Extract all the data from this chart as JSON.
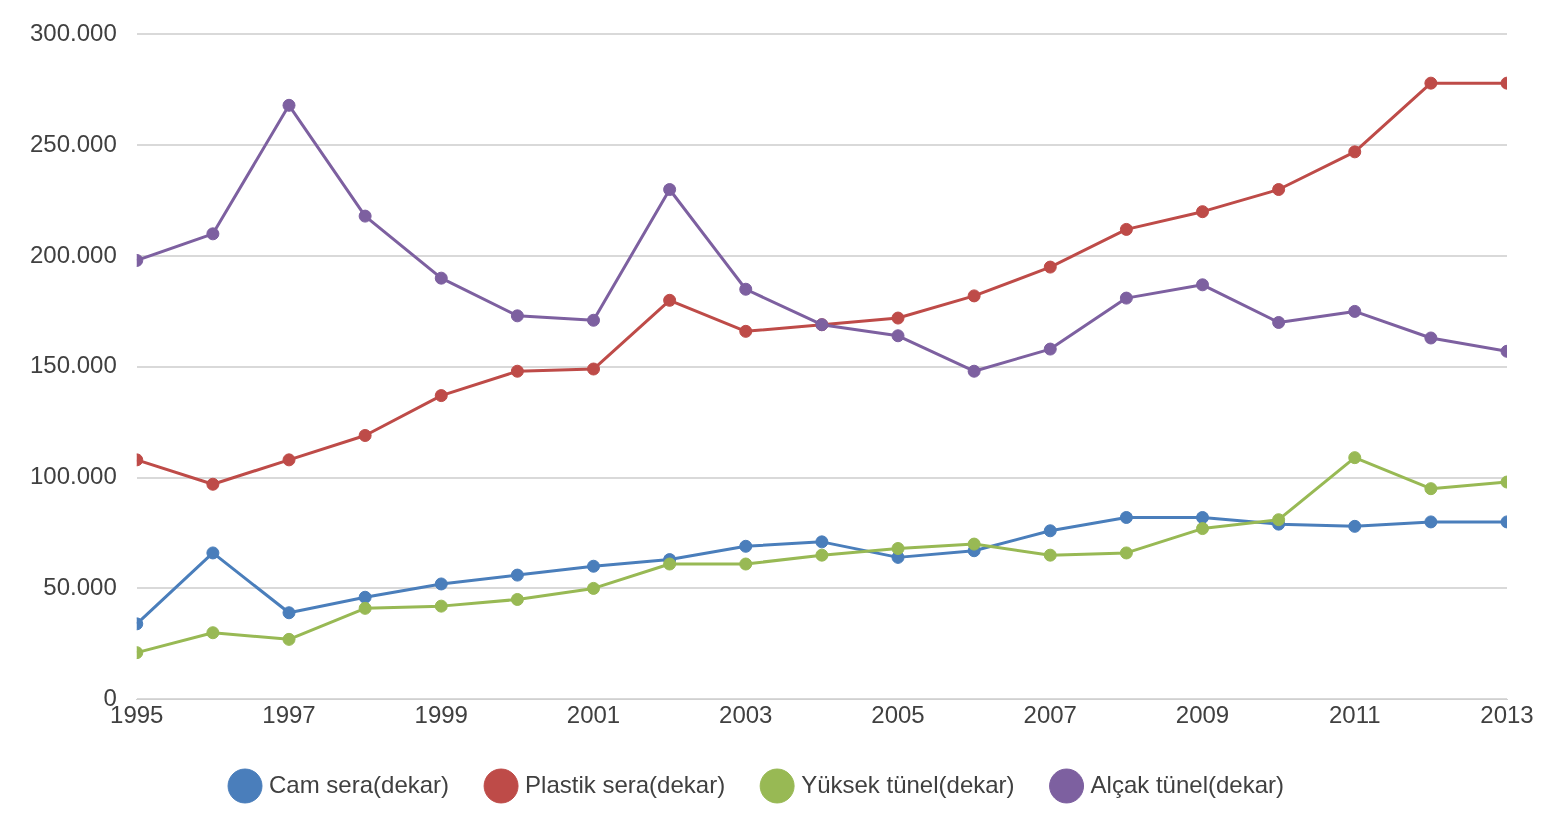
{
  "chart_data": {
    "type": "line",
    "x": [
      1995,
      1996,
      1997,
      1998,
      1999,
      2000,
      2001,
      2002,
      2003,
      2004,
      2005,
      2006,
      2007,
      2008,
      2009,
      2010,
      2011,
      2012,
      2013
    ],
    "xlim": [
      1995,
      2013
    ],
    "xticks": [
      1995,
      1997,
      1999,
      2001,
      2003,
      2005,
      2007,
      2009,
      2011,
      2013
    ],
    "ylim": [
      0,
      300000
    ],
    "yticks": [
      {
        "value": 0,
        "label": "0"
      },
      {
        "value": 50000,
        "label": "50.000"
      },
      {
        "value": 100000,
        "label": "100.000"
      },
      {
        "value": 150000,
        "label": "150.000"
      },
      {
        "value": 200000,
        "label": "200.000"
      },
      {
        "value": 250000,
        "label": "250.000"
      },
      {
        "value": 300000,
        "label": "300.000"
      }
    ],
    "grid": "y",
    "legend": "bottom",
    "marker": "circle",
    "line_style": "solid",
    "series": [
      {
        "name": "Cam sera(dekar)",
        "color": "#4a7ebb",
        "values": [
          34000,
          66000,
          39000,
          46000,
          52000,
          56000,
          60000,
          63000,
          69000,
          71000,
          64000,
          67000,
          76000,
          82000,
          82000,
          79000,
          78000,
          80000,
          80000
        ]
      },
      {
        "name": "Plastik sera(dekar)",
        "color": "#be4b48",
        "values": [
          108000,
          97000,
          108000,
          119000,
          137000,
          148000,
          149000,
          180000,
          166000,
          169000,
          172000,
          182000,
          195000,
          212000,
          220000,
          230000,
          247000,
          278000,
          278000
        ]
      },
      {
        "name": "Yüksek tünel(dekar)",
        "color": "#98b954",
        "values": [
          21000,
          30000,
          27000,
          41000,
          42000,
          45000,
          50000,
          61000,
          61000,
          65000,
          68000,
          70000,
          65000,
          66000,
          77000,
          81000,
          109000,
          95000,
          98000
        ]
      },
      {
        "name": "Alçak tünel(dekar)",
        "color": "#7d60a0",
        "values": [
          198000,
          210000,
          268000,
          218000,
          190000,
          173000,
          171000,
          230000,
          185000,
          169000,
          164000,
          148000,
          158000,
          181000,
          187000,
          170000,
          175000,
          163000,
          157000
        ]
      }
    ]
  }
}
